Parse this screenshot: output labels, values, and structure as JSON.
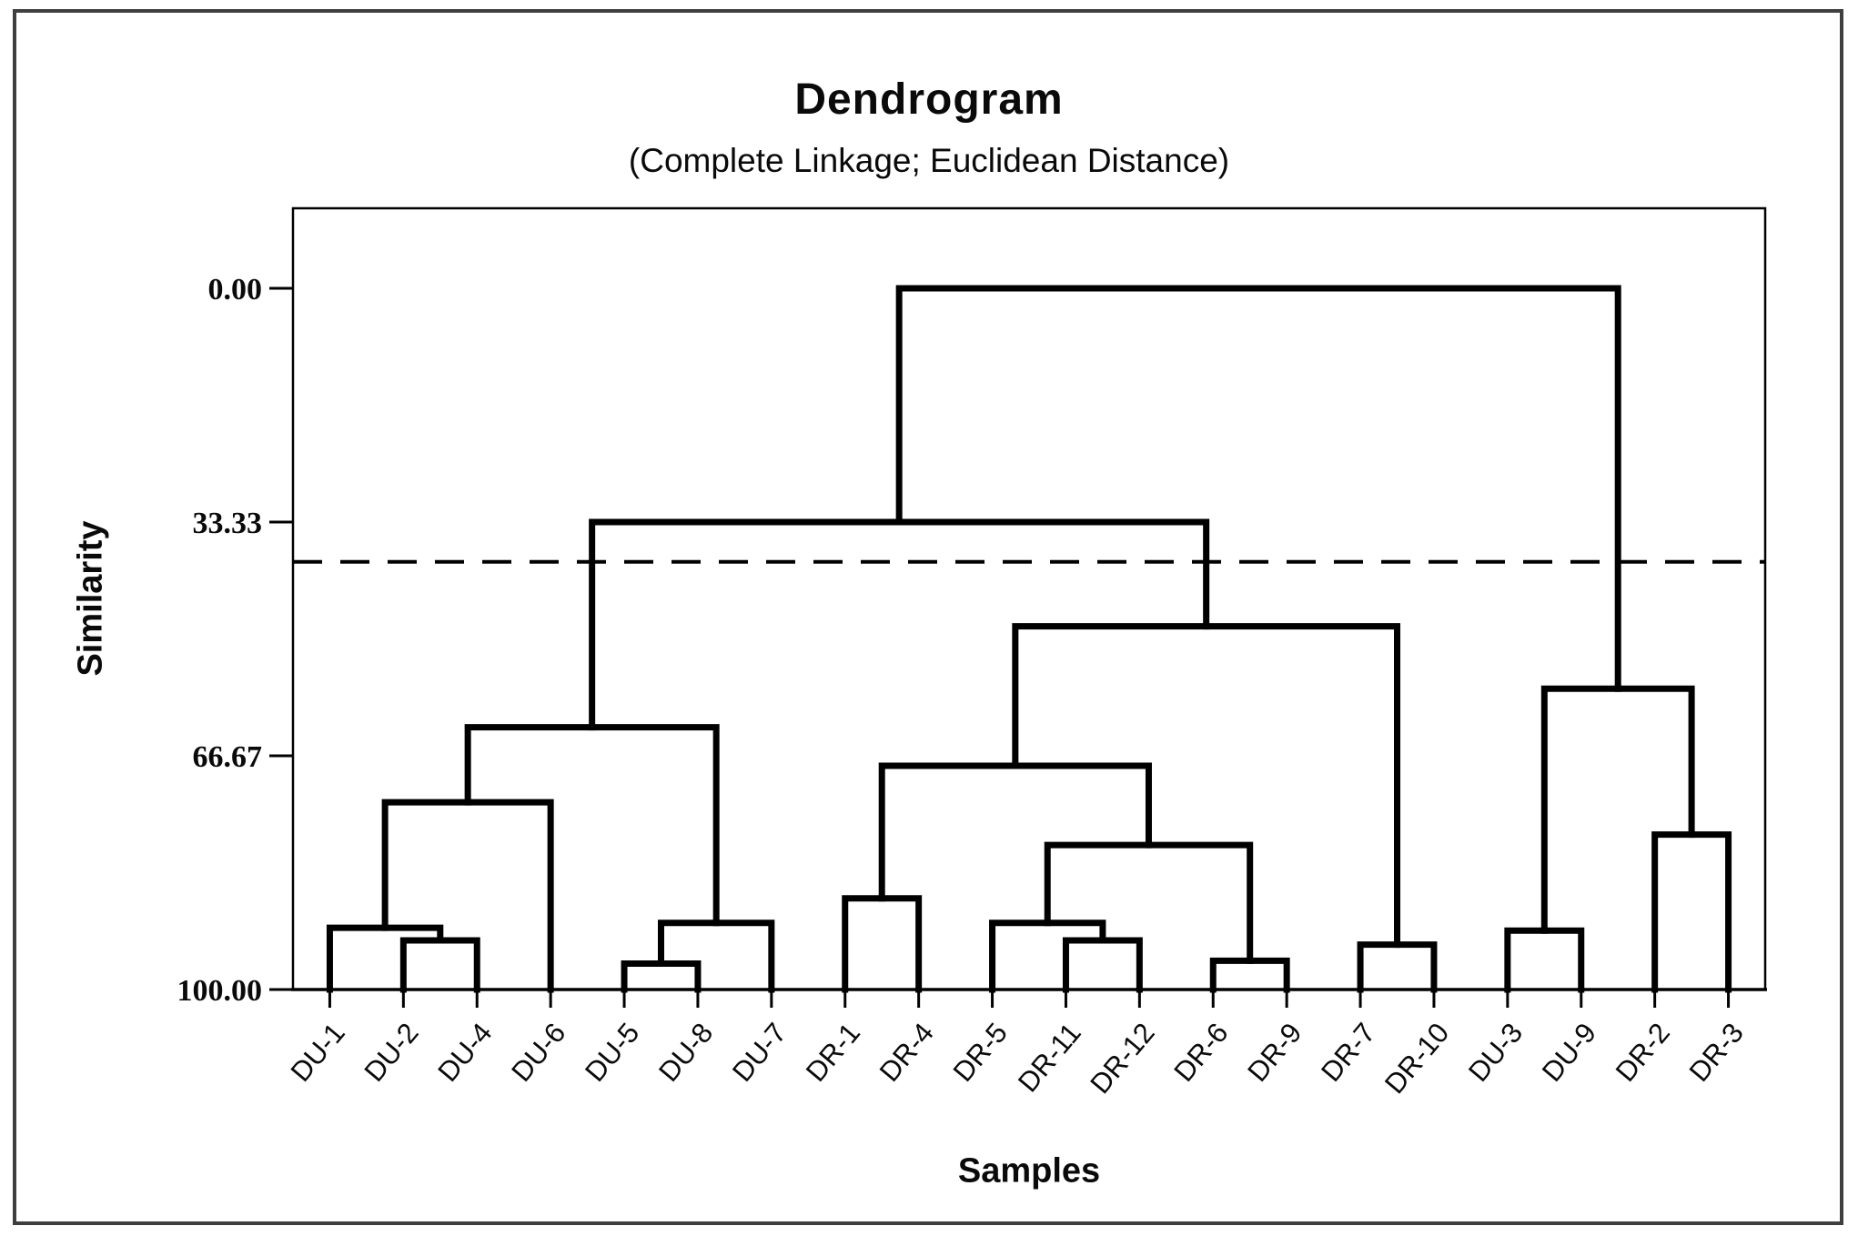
{
  "figure": {
    "title": "Dendrogram",
    "subtitle": "(Complete Linkage; Euclidean Distance)"
  },
  "chart_data": {
    "type": "dendrogram",
    "title": "Dendrogram",
    "subtitle": "(Complete Linkage; Euclidean Distance)",
    "xlabel": "Samples",
    "ylabel": "Similarity",
    "linkage": "Complete Linkage",
    "distance": "Euclidean Distance",
    "y_axis": {
      "label": "Similarity",
      "tick_labels": [
        "0.00",
        "33.33",
        "66.67",
        "100.00"
      ],
      "tick_values": [
        0,
        33.33,
        66.67,
        100
      ],
      "range": [
        0,
        100
      ],
      "inverted": true,
      "grid": false
    },
    "x_axis": {
      "label": "Samples"
    },
    "leaves": [
      "DU-1",
      "DU-2",
      "DU-4",
      "DU-6",
      "DU-5",
      "DU-8",
      "DU-7",
      "DR-1",
      "DR-4",
      "DR-5",
      "DR-11",
      "DR-12",
      "DR-6",
      "DR-9",
      "DR-7",
      "DR-10",
      "DU-3",
      "DU-9",
      "DR-2",
      "DR-3"
    ],
    "cutline": {
      "similarity": 39.0,
      "style": "dashed"
    },
    "colors": {
      "line": "#000000",
      "cutline": "#000000",
      "frame": "#3f3f3f"
    },
    "tree": {
      "similarity": 0.0,
      "children": [
        {
          "similarity": 33.33,
          "children": [
            {
              "similarity": 62.6,
              "children": [
                {
                  "similarity": 73.3,
                  "children": [
                    {
                      "similarity": 91.2,
                      "children": [
                        {
                          "leaf": "DU-1"
                        },
                        {
                          "similarity": 93.0,
                          "children": [
                            {
                              "leaf": "DU-2"
                            },
                            {
                              "leaf": "DU-4"
                            }
                          ]
                        }
                      ]
                    },
                    {
                      "leaf": "DU-6"
                    }
                  ]
                },
                {
                  "similarity": 90.5,
                  "children": [
                    {
                      "similarity": 96.3,
                      "children": [
                        {
                          "leaf": "DU-5"
                        },
                        {
                          "leaf": "DU-8"
                        }
                      ]
                    },
                    {
                      "leaf": "DU-7"
                    }
                  ]
                }
              ]
            },
            {
              "similarity": 48.2,
              "children": [
                {
                  "similarity": 68.1,
                  "children": [
                    {
                      "similarity": 87.0,
                      "children": [
                        {
                          "leaf": "DR-1"
                        },
                        {
                          "leaf": "DR-4"
                        }
                      ]
                    },
                    {
                      "similarity": 79.4,
                      "children": [
                        {
                          "similarity": 90.5,
                          "children": [
                            {
                              "leaf": "DR-5"
                            },
                            {
                              "similarity": 93.0,
                              "children": [
                                {
                                  "leaf": "DR-11"
                                },
                                {
                                  "leaf": "DR-12"
                                }
                              ]
                            }
                          ]
                        },
                        {
                          "similarity": 95.9,
                          "children": [
                            {
                              "leaf": "DR-6"
                            },
                            {
                              "leaf": "DR-9"
                            }
                          ]
                        }
                      ]
                    }
                  ]
                },
                {
                  "similarity": 93.6,
                  "children": [
                    {
                      "leaf": "DR-7"
                    },
                    {
                      "leaf": "DR-10"
                    }
                  ]
                }
              ]
            }
          ]
        },
        {
          "similarity": 57.1,
          "children": [
            {
              "similarity": 91.6,
              "children": [
                {
                  "leaf": "DU-3"
                },
                {
                  "leaf": "DU-9"
                }
              ]
            },
            {
              "similarity": 77.9,
              "children": [
                {
                  "leaf": "DR-2"
                },
                {
                  "leaf": "DR-3"
                }
              ]
            }
          ]
        }
      ]
    }
  }
}
